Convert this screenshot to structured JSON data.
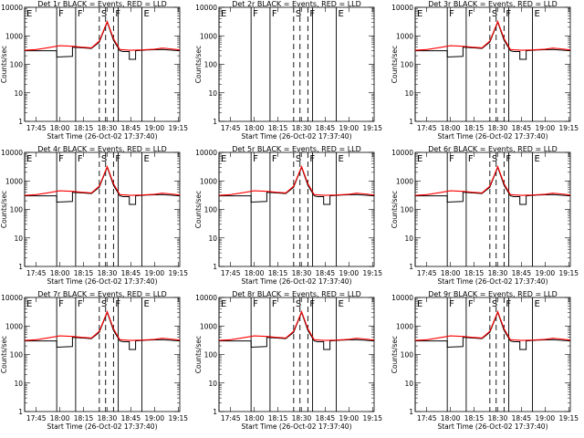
{
  "chart_data": [
    {
      "type": "line",
      "title": "Det 1r BLACK = Events, RED = LLD",
      "xlabel": "Start Time (26-Oct-02 17:37:40)",
      "ylabel": "Counts/sec",
      "has_data": true,
      "ylim": [
        1,
        10000
      ],
      "yscale": "log",
      "series": [
        {
          "name": "Events",
          "color": "#000000"
        },
        {
          "name": "LLD",
          "color": "#ff0000"
        }
      ]
    },
    {
      "type": "line",
      "title": "Det 2r BLACK = Events, RED = LLD",
      "xlabel": "Start Time (26-Oct-02 17:37:40)",
      "ylabel": "Counts/sec",
      "has_data": false,
      "ylim": [
        1,
        10000
      ],
      "yscale": "log",
      "series": [
        {
          "name": "Events",
          "color": "#000000"
        },
        {
          "name": "LLD",
          "color": "#ff0000"
        }
      ]
    },
    {
      "type": "line",
      "title": "Det 3r BLACK = Events, RED = LLD",
      "xlabel": "Start Time (26-Oct-02 17:37:40)",
      "ylabel": "Counts/sec",
      "has_data": true,
      "ylim": [
        1,
        10000
      ],
      "yscale": "log",
      "series": [
        {
          "name": "Events",
          "color": "#000000"
        },
        {
          "name": "LLD",
          "color": "#ff0000"
        }
      ]
    },
    {
      "type": "line",
      "title": "Det 4r BLACK = Events, RED = LLD",
      "xlabel": "Start Time (26-Oct-02 17:37:40)",
      "ylabel": "Counts/sec",
      "has_data": true,
      "ylim": [
        1,
        10000
      ],
      "yscale": "log",
      "series": [
        {
          "name": "Events",
          "color": "#000000"
        },
        {
          "name": "LLD",
          "color": "#ff0000"
        }
      ]
    },
    {
      "type": "line",
      "title": "Det 5r BLACK = Events, RED = LLD",
      "xlabel": "Start Time (26-Oct-02 17:37:40)",
      "ylabel": "Counts/sec",
      "has_data": true,
      "ylim": [
        1,
        10000
      ],
      "yscale": "log",
      "series": [
        {
          "name": "Events",
          "color": "#000000"
        },
        {
          "name": "LLD",
          "color": "#ff0000"
        }
      ]
    },
    {
      "type": "line",
      "title": "Det 6r BLACK = Events, RED = LLD",
      "xlabel": "Start Time (26-Oct-02 17:37:40)",
      "ylabel": "Counts/sec",
      "has_data": true,
      "ylim": [
        1,
        10000
      ],
      "yscale": "log",
      "series": [
        {
          "name": "Events",
          "color": "#000000"
        },
        {
          "name": "LLD",
          "color": "#ff0000"
        }
      ]
    },
    {
      "type": "line",
      "title": "Det 7r BLACK = Events, RED = LLD",
      "xlabel": "Start Time (26-Oct-02 17:37:40)",
      "ylabel": "Counts/sec",
      "has_data": true,
      "ylim": [
        1,
        10000
      ],
      "yscale": "log",
      "series": [
        {
          "name": "Events",
          "color": "#000000"
        },
        {
          "name": "LLD",
          "color": "#ff0000"
        }
      ]
    },
    {
      "type": "line",
      "title": "Det 8r BLACK = Events, RED = LLD",
      "xlabel": "Start Time (26-Oct-02 17:37:40)",
      "ylabel": "Counts/sec",
      "has_data": true,
      "ylim": [
        1,
        10000
      ],
      "yscale": "log",
      "series": [
        {
          "name": "Events",
          "color": "#000000"
        },
        {
          "name": "LLD",
          "color": "#ff0000"
        }
      ]
    },
    {
      "type": "line",
      "title": "Det 9r BLACK = Events, RED = LLD",
      "xlabel": "Start Time (26-Oct-02 17:37:40)",
      "ylabel": "Counts/sec",
      "has_data": true,
      "ylim": [
        1,
        10000
      ],
      "yscale": "log",
      "series": [
        {
          "name": "Events",
          "color": "#000000"
        },
        {
          "name": "LLD",
          "color": "#ff0000"
        }
      ]
    }
  ],
  "shared": {
    "xlim": [
      "17:37:40",
      "19:16"
    ],
    "xtick_labels": [
      "17:45",
      "18:00",
      "18:15",
      "18:30",
      "18:45",
      "19:00",
      "19:15"
    ],
    "ytick_values": [
      1,
      10,
      100,
      1000,
      10000
    ],
    "ytick_labels": [
      "1",
      "10",
      "100",
      "1000",
      "10000"
    ],
    "segments": [
      {
        "label": "E",
        "time": "17:37:40",
        "style": "solid"
      },
      {
        "label": "F",
        "time": "17:58",
        "style": "solid"
      },
      {
        "label": "F",
        "time": "18:10",
        "style": "solid"
      },
      {
        "label": "S",
        "time": "18:25",
        "style": "dashed"
      },
      {
        "label": "F",
        "time": "18:34",
        "style": "dashed"
      },
      {
        "label": "E",
        "time": "18:52",
        "style": "solid"
      }
    ],
    "extra_boundaries": [
      {
        "time": "18:29",
        "style": "dashed"
      },
      {
        "time": "18:37",
        "style": "solid"
      }
    ],
    "events_profile": {
      "times": [
        "17:37:40",
        "17:45",
        "17:50",
        "17:58",
        "17:58",
        "18:08",
        "18:08",
        "18:14",
        "18:20",
        "18:25",
        "18:30",
        "18:34",
        "18:38",
        "18:40",
        "18:44",
        "18:44",
        "18:48",
        "18:48",
        "18:55",
        "19:05",
        "19:16"
      ],
      "values": [
        300,
        300,
        300,
        300,
        180,
        190,
        400,
        380,
        360,
        600,
        3000,
        700,
        300,
        280,
        280,
        150,
        150,
        300,
        320,
        330,
        300
      ]
    },
    "lld_profile": {
      "times": [
        "17:37:40",
        "17:45",
        "17:52",
        "18:00",
        "18:08",
        "18:14",
        "18:20",
        "18:25",
        "18:30",
        "18:34",
        "18:38",
        "18:45",
        "18:52",
        "19:00",
        "19:05",
        "19:10",
        "19:16"
      ],
      "values": [
        310,
        330,
        380,
        450,
        430,
        400,
        380,
        650,
        3200,
        800,
        330,
        310,
        320,
        340,
        370,
        350,
        320
      ]
    }
  }
}
